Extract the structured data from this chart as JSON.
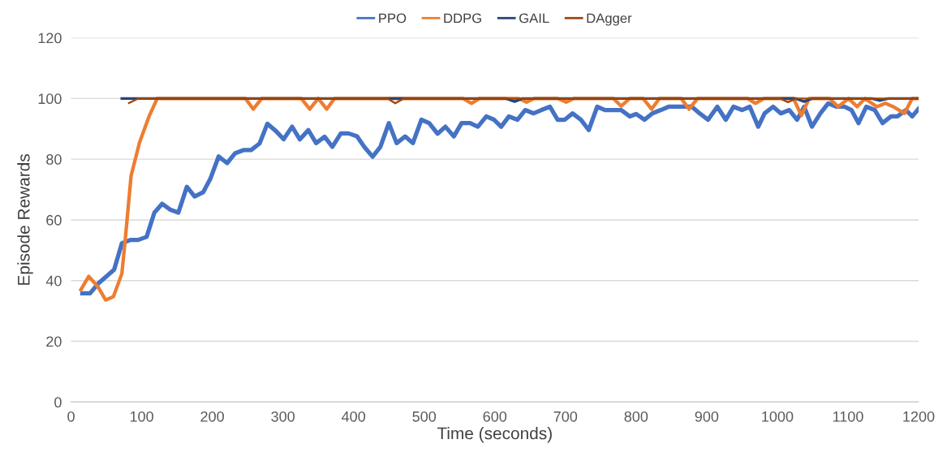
{
  "chart_data": {
    "type": "line",
    "xlabel": "Time (seconds)",
    "ylabel": "Episode Rewards",
    "xlim": [
      0,
      1200
    ],
    "xticks": [
      0,
      100,
      200,
      300,
      400,
      500,
      600,
      700,
      800,
      900,
      1000,
      1100,
      1200
    ],
    "ylim": [
      0,
      120
    ],
    "yticks": [
      0,
      20,
      40,
      60,
      80,
      100,
      120
    ],
    "grid": "y",
    "legend": "top",
    "marker": "none",
    "line_style": "solid",
    "series": [
      {
        "name": "PPO",
        "color": "#4472c4",
        "x": [
          16,
          27,
          38,
          61,
          72,
          84,
          95,
          107,
          118,
          129,
          141,
          152,
          164,
          175,
          187,
          197,
          209,
          221,
          232,
          244,
          255,
          267,
          278,
          290,
          301,
          313,
          324,
          336,
          347,
          359,
          370,
          382,
          393,
          405,
          415,
          427,
          438,
          450,
          461,
          473,
          484,
          496,
          507,
          519,
          530,
          542,
          553,
          565,
          576,
          588,
          599,
          609,
          620,
          632,
          643,
          655,
          666,
          678,
          689,
          699,
          710,
          722,
          733,
          745,
          756,
          768,
          779,
          791,
          800,
          812,
          823,
          835,
          846,
          858,
          869,
          879,
          890,
          902,
          915,
          927,
          938,
          950,
          961,
          973,
          982,
          994,
          1005,
          1017,
          1028,
          1038,
          1049,
          1061,
          1072,
          1084,
          1095,
          1105,
          1115,
          1126,
          1138,
          1149,
          1161,
          1170,
          1182,
          1191,
          1200
        ],
        "values": [
          35.8,
          35.8,
          38.9,
          43.6,
          52.3,
          53.4,
          53.4,
          54.4,
          62.4,
          65.3,
          63.3,
          62.4,
          70.9,
          67.7,
          69.1,
          73.4,
          80.9,
          78.7,
          81.9,
          83,
          83,
          85.2,
          91.7,
          89.3,
          86.6,
          90.7,
          86.5,
          89.6,
          85.3,
          87.4,
          84.1,
          88.5,
          88.5,
          87.5,
          84.1,
          80.8,
          84.1,
          91.9,
          85.3,
          87.5,
          85.3,
          93,
          91.9,
          88.4,
          90.7,
          87.5,
          91.9,
          91.9,
          90.7,
          94.1,
          93,
          90.7,
          94.1,
          93,
          96.2,
          95.1,
          96.2,
          97.3,
          93,
          93,
          95.1,
          93,
          89.6,
          97.3,
          96.2,
          96.2,
          96.2,
          94.1,
          94.9,
          93,
          95.1,
          96.2,
          97.3,
          97.3,
          97.3,
          97.3,
          95.1,
          93,
          97.3,
          93,
          97.3,
          96.2,
          97.3,
          90.7,
          95.1,
          97.3,
          95.1,
          96.2,
          93,
          97.3,
          90.7,
          95.1,
          98.4,
          97.3,
          97.3,
          96.2,
          91.9,
          97.3,
          96.2,
          91.9,
          94.1,
          94.1,
          96.2,
          94.1,
          96.6
        ]
      },
      {
        "name": "DDPG",
        "color": "#ed7d31",
        "x": [
          14,
          25,
          38,
          49,
          60,
          72,
          77,
          85,
          97,
          111,
          122,
          247,
          258,
          270,
          326,
          338,
          350,
          362,
          373,
          555,
          567,
          578,
          634,
          645,
          656,
          689,
          701,
          712,
          768,
          779,
          791,
          810,
          822,
          833,
          864,
          875,
          887,
          958,
          969,
          981,
          1023,
          1034,
          1045,
          1074,
          1086,
          1101,
          1113,
          1124,
          1141,
          1153,
          1164,
          1180,
          1191,
          1200
        ],
        "values": [
          37,
          41.4,
          38,
          33.6,
          34.7,
          42.3,
          54.1,
          74.5,
          85.5,
          94.4,
          100,
          100,
          96.5,
          100,
          100,
          96.5,
          100,
          96.5,
          100,
          100,
          98.4,
          100,
          100,
          98.8,
          100,
          100,
          98.8,
          100,
          100,
          97.5,
          100,
          100,
          96.5,
          100,
          100,
          96.5,
          100,
          100,
          98.4,
          100,
          100,
          94.4,
          100,
          100,
          97.3,
          100,
          97.3,
          100,
          97.3,
          98.4,
          97.3,
          95.1,
          100,
          100
        ]
      },
      {
        "name": "GAIL",
        "color": "#264478",
        "x": [
          72,
          616,
          628,
          639,
          1026,
          1038,
          1049,
          1134,
          1145,
          1157,
          1200
        ],
        "values": [
          100,
          100,
          99,
          100,
          100,
          99,
          100,
          100,
          99.3,
          100,
          100
        ]
      },
      {
        "name": "DAgger",
        "color": "#9e480e",
        "x": [
          82,
          95,
          448,
          459,
          471,
          1004,
          1015,
          1027,
          1200
        ],
        "values": [
          98.5,
          100,
          100,
          98.4,
          100,
          100,
          98.8,
          100,
          100
        ]
      }
    ]
  }
}
